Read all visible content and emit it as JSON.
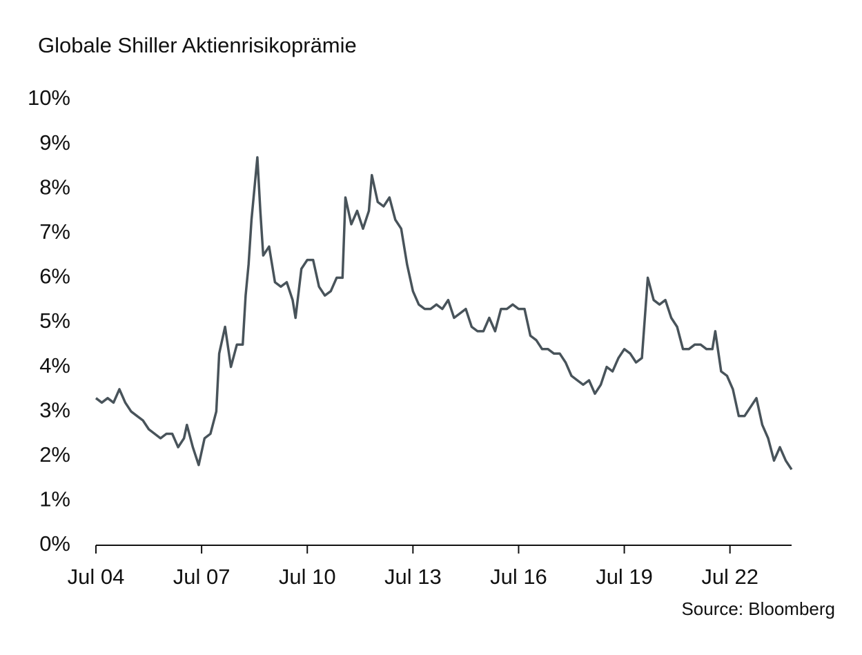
{
  "chart_data": {
    "type": "line",
    "title": "Globale Shiller Aktienrisikoprämie",
    "source": "Source: Bloomberg",
    "x": [
      "2004-07",
      "2004-09",
      "2004-11",
      "2005-01",
      "2005-03",
      "2005-05",
      "2005-07",
      "2005-09",
      "2005-11",
      "2006-01",
      "2006-03",
      "2006-05",
      "2006-07",
      "2006-09",
      "2006-11",
      "2007-01",
      "2007-02",
      "2007-04",
      "2007-06",
      "2007-08",
      "2007-10",
      "2007-12",
      "2008-01",
      "2008-03",
      "2008-05",
      "2008-07",
      "2008-09",
      "2008-10",
      "2008-11",
      "2008-12",
      "2009-02",
      "2009-03",
      "2009-04",
      "2009-06",
      "2009-08",
      "2009-10",
      "2009-12",
      "2010-02",
      "2010-03",
      "2010-05",
      "2010-07",
      "2010-09",
      "2010-11",
      "2011-01",
      "2011-03",
      "2011-05",
      "2011-07",
      "2011-08",
      "2011-10",
      "2011-12",
      "2012-02",
      "2012-04",
      "2012-05",
      "2012-07",
      "2012-09",
      "2012-11",
      "2013-01",
      "2013-03",
      "2013-05",
      "2013-07",
      "2013-09",
      "2013-11",
      "2014-01",
      "2014-03",
      "2014-05",
      "2014-07",
      "2014-09",
      "2014-11",
      "2015-01",
      "2015-03",
      "2015-05",
      "2015-07",
      "2015-09",
      "2015-11",
      "2016-01",
      "2016-03",
      "2016-05",
      "2016-07",
      "2016-09",
      "2016-11",
      "2017-01",
      "2017-03",
      "2017-05",
      "2017-07",
      "2017-09",
      "2017-11",
      "2018-01",
      "2018-03",
      "2018-05",
      "2018-07",
      "2018-09",
      "2018-11",
      "2019-01",
      "2019-03",
      "2019-05",
      "2019-07",
      "2019-09",
      "2019-11",
      "2020-01",
      "2020-03",
      "2020-05",
      "2020-07",
      "2020-09",
      "2020-11",
      "2021-01",
      "2021-03",
      "2021-05",
      "2021-07",
      "2021-09",
      "2021-11",
      "2022-01",
      "2022-02",
      "2022-04",
      "2022-06",
      "2022-08",
      "2022-10",
      "2022-12",
      "2023-02",
      "2023-04",
      "2023-06",
      "2023-08",
      "2023-10",
      "2023-12",
      "2024-02",
      "2024-04"
    ],
    "series": [
      {
        "color": "#48535a",
        "values": [
          3.3,
          3.2,
          3.3,
          3.2,
          3.5,
          3.2,
          3.0,
          2.9,
          2.8,
          2.6,
          2.5,
          2.4,
          2.5,
          2.5,
          2.2,
          2.4,
          2.7,
          2.2,
          1.8,
          2.4,
          2.5,
          3.0,
          4.3,
          4.9,
          4.0,
          4.5,
          4.5,
          5.6,
          6.3,
          7.3,
          8.7,
          7.5,
          6.5,
          6.7,
          5.9,
          5.8,
          5.9,
          5.5,
          5.1,
          6.2,
          6.4,
          6.4,
          5.8,
          5.6,
          5.7,
          6.0,
          6.0,
          7.8,
          7.2,
          7.5,
          7.1,
          7.5,
          8.3,
          7.7,
          7.6,
          7.8,
          7.3,
          7.1,
          6.3,
          5.7,
          5.4,
          5.3,
          5.3,
          5.4,
          5.3,
          5.5,
          5.1,
          5.2,
          5.3,
          4.9,
          4.8,
          4.8,
          5.1,
          4.8,
          5.3,
          5.3,
          5.4,
          5.3,
          5.3,
          4.7,
          4.6,
          4.4,
          4.4,
          4.3,
          4.3,
          4.1,
          3.8,
          3.7,
          3.6,
          3.7,
          3.4,
          3.6,
          4.0,
          3.9,
          4.2,
          4.4,
          4.3,
          4.1,
          4.2,
          6.0,
          5.5,
          5.4,
          5.5,
          5.1,
          4.9,
          4.4,
          4.4,
          4.5,
          4.5,
          4.4,
          4.4,
          4.8,
          3.9,
          3.8,
          3.5,
          2.9,
          2.9,
          3.1,
          3.3,
          2.7,
          2.4,
          1.9,
          2.2,
          1.9,
          1.7
        ]
      }
    ],
    "xlim": [
      "2004-07",
      "2024-04"
    ],
    "xticks": [
      {
        "value": "2004-07",
        "label": "Jul 04"
      },
      {
        "value": "2007-07",
        "label": "Jul 07"
      },
      {
        "value": "2010-07",
        "label": "Jul 10"
      },
      {
        "value": "2013-07",
        "label": "Jul 13"
      },
      {
        "value": "2016-07",
        "label": "Jul 16"
      },
      {
        "value": "2019-07",
        "label": "Jul 19"
      },
      {
        "value": "2022-07",
        "label": "Jul 22"
      }
    ],
    "ylim": [
      0,
      10
    ],
    "yticks": [
      {
        "value": 0,
        "label": "0%"
      },
      {
        "value": 1,
        "label": "1%"
      },
      {
        "value": 2,
        "label": "2%"
      },
      {
        "value": 3,
        "label": "3%"
      },
      {
        "value": 4,
        "label": "4%"
      },
      {
        "value": 5,
        "label": "5%"
      },
      {
        "value": 6,
        "label": "6%"
      },
      {
        "value": 7,
        "label": "7%"
      },
      {
        "value": 8,
        "label": "8%"
      },
      {
        "value": 9,
        "label": "9%"
      },
      {
        "value": 10,
        "label": "10%"
      }
    ]
  }
}
